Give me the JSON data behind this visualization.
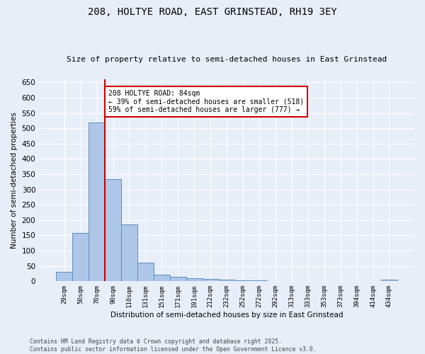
{
  "title": "208, HOLTYE ROAD, EAST GRINSTEAD, RH19 3EY",
  "subtitle": "Size of property relative to semi-detached houses in East Grinstead",
  "bar_labels": [
    "29sqm",
    "50sqm",
    "70sqm",
    "90sqm",
    "110sqm",
    "131sqm",
    "151sqm",
    "171sqm",
    "191sqm",
    "212sqm",
    "232sqm",
    "252sqm",
    "272sqm",
    "292sqm",
    "313sqm",
    "333sqm",
    "353sqm",
    "373sqm",
    "394sqm",
    "414sqm",
    "434sqm"
  ],
  "bar_values": [
    30,
    158,
    520,
    335,
    185,
    62,
    22,
    15,
    10,
    8,
    5,
    2,
    2,
    1,
    1,
    1,
    1,
    0,
    0,
    0,
    5
  ],
  "bar_color": "#aec6e8",
  "bar_edge_color": "#5b8fbe",
  "background_color": "#e8eef8",
  "grid_color": "#ffffff",
  "xlabel": "Distribution of semi-detached houses by size in East Grinstead",
  "ylabel": "Number of semi-detached properties",
  "ylim": [
    0,
    660
  ],
  "yticks": [
    0,
    50,
    100,
    150,
    200,
    250,
    300,
    350,
    400,
    450,
    500,
    550,
    600,
    650
  ],
  "vline_x": 2.5,
  "vline_color": "#cc0000",
  "annotation_title": "208 HOLTYE ROAD: 84sqm",
  "annotation_line1": "← 39% of semi-detached houses are smaller (518)",
  "annotation_line2": "59% of semi-detached houses are larger (777) →",
  "annotation_box_color": "#ffffff",
  "annotation_edge_color": "#cc0000",
  "footnote1": "Contains HM Land Registry data © Crown copyright and database right 2025.",
  "footnote2": "Contains public sector information licensed under the Open Government Licence v3.0."
}
